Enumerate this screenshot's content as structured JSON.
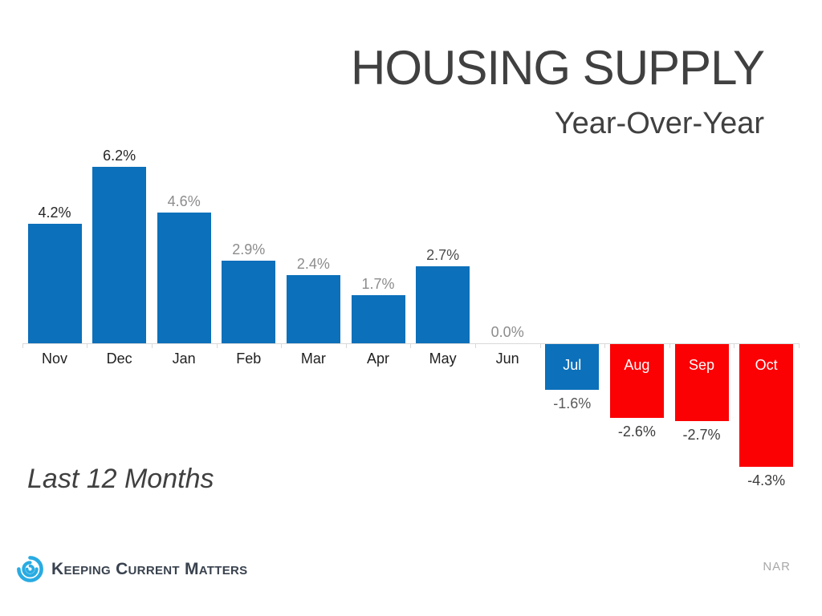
{
  "title": "HOUSING SUPPLY",
  "subtitle": "Year-Over-Year",
  "note": "Last 12 Months",
  "source": "NAR",
  "brand": {
    "name": "Keeping Current Matters",
    "logo_icon": "swirl-icon",
    "logo_color": "#29abe2",
    "text_color": "#39424e"
  },
  "colors": {
    "positive_bar": "#0c70ba",
    "negative_bar": "#fb0104",
    "axis": "#d9d9d9",
    "title_text": "#404040",
    "month_label_dark": "#1f1f1f",
    "month_label_light": "#ffffff"
  },
  "chart_data": {
    "type": "bar",
    "title": "HOUSING SUPPLY",
    "subtitle": "Year-Over-Year",
    "categories": [
      "Nov",
      "Dec",
      "Jan",
      "Feb",
      "Mar",
      "Apr",
      "May",
      "Jun",
      "Jul",
      "Aug",
      "Sep",
      "Oct"
    ],
    "values": [
      4.2,
      6.2,
      4.6,
      2.9,
      2.4,
      1.7,
      2.7,
      0.0,
      -1.6,
      -2.6,
      -2.7,
      -4.3
    ],
    "value_labels": [
      "4.2%",
      "6.2%",
      "4.6%",
      "2.9%",
      "2.4%",
      "1.7%",
      "2.7%",
      "0.0%",
      "-1.6%",
      "-2.6%",
      "-2.7%",
      "-4.3%"
    ],
    "bar_colors": [
      "#0c70ba",
      "#0c70ba",
      "#0c70ba",
      "#0c70ba",
      "#0c70ba",
      "#0c70ba",
      "#0c70ba",
      null,
      "#0c70ba",
      "#fb0104",
      "#fb0104",
      "#fb0104"
    ],
    "value_label_colors": [
      "#262626",
      "#262626",
      "#8c8c8c",
      "#8c8c8c",
      "#8c8c8c",
      "#8c8c8c",
      "#4d4d4d",
      "#8c8c8c",
      "#595959",
      "#3d3d3d",
      "#3d3d3d",
      "#3d3d3d"
    ],
    "xlabel": "",
    "ylabel": "",
    "ylim": [
      -5,
      7
    ],
    "grid": false,
    "legend": false,
    "axis_color": "#d9d9d9",
    "annotations": [
      "Last 12 Months",
      "NAR"
    ]
  }
}
